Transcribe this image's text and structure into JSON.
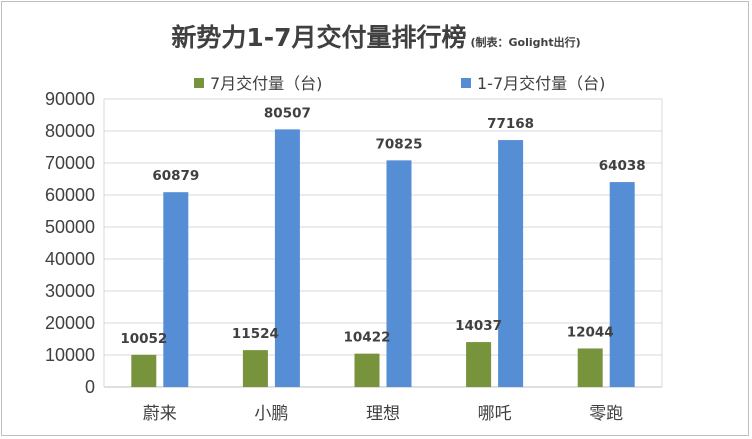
{
  "chart_data": {
    "type": "bar",
    "title": "新势力1-7月交付量排行榜",
    "subtitle": "(制表：Golight出行)",
    "categories": [
      "蔚来",
      "小鹏",
      "理想",
      "哪吒",
      "零跑"
    ],
    "series": [
      {
        "name": "7月交付量（台)",
        "color": "#77933c",
        "values": [
          10052,
          11524,
          10422,
          14037,
          12044
        ]
      },
      {
        "name": "1-7月交付量（台)",
        "color": "#558ed5",
        "values": [
          60879,
          80507,
          70825,
          77168,
          64038
        ]
      }
    ],
    "ylim": [
      0,
      90000
    ],
    "yticks": [
      0,
      10000,
      20000,
      30000,
      40000,
      50000,
      60000,
      70000,
      80000,
      90000
    ],
    "xlabel": "",
    "ylabel": "",
    "grid": true,
    "legend": "top"
  }
}
